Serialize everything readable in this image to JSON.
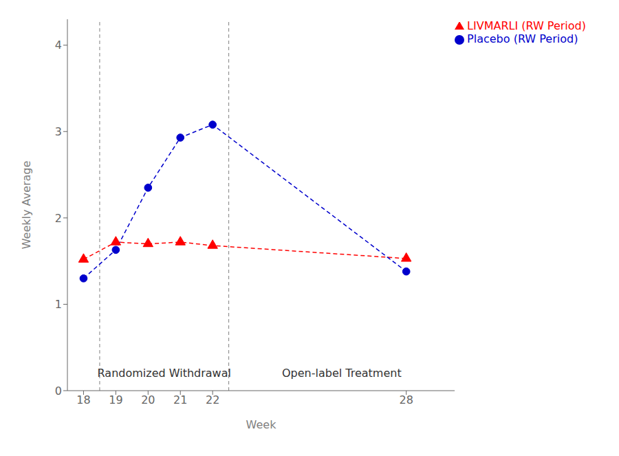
{
  "chart_data": {
    "type": "line",
    "x": [
      18,
      19,
      20,
      21,
      22,
      28
    ],
    "series": [
      {
        "name": "LIVMARLI (RW Period)",
        "color": "#FF0000",
        "values": [
          1.52,
          1.72,
          1.7,
          1.72,
          1.68,
          1.53
        ],
        "marker": "triangle",
        "line_style": "dashed"
      },
      {
        "name": "Placebo (RW Period)",
        "color": "#0000CC",
        "values": [
          1.3,
          1.63,
          2.35,
          2.93,
          3.08,
          1.38
        ],
        "marker": "circle",
        "line_style": "dashed"
      }
    ],
    "xlim": [
      17.5,
      29.5
    ],
    "xticks": [
      18,
      19,
      20,
      21,
      22,
      28
    ],
    "ylim": [
      0,
      4.3
    ],
    "yticks": [
      0,
      1,
      2,
      3,
      4
    ],
    "xlabel": "Week",
    "ylabel": "Weekly Average",
    "vlines": [
      18.5,
      22.5
    ],
    "annotations": [
      "Randomized Withdrawal",
      "Open-label Treatment"
    ],
    "legend": "upper right",
    "grid": false
  }
}
